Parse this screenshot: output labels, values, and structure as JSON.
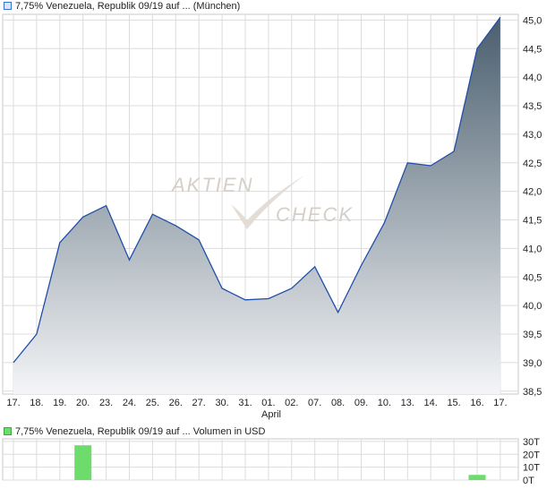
{
  "price_chart": {
    "legend": "7,75% Venezuela, Republik 09/19 auf ... (München)",
    "legend_color": "#3a6fd0",
    "line_color": "#1f4fa8",
    "fill_top_color": "#4a5e6e",
    "fill_bottom_color": "#f4f5f7",
    "grid_color": "#dcdcdc",
    "y_tick_labels": [
      "38,5",
      "39,0",
      "39,5",
      "40,0",
      "40,5",
      "41,0",
      "41,5",
      "42,0",
      "42,5",
      "43,0",
      "43,5",
      "44,0",
      "44,5",
      "45,0"
    ],
    "x_tick_labels": [
      "17.",
      "18.",
      "19.",
      "20.",
      "23.",
      "24.",
      "25.",
      "26.",
      "27.",
      "30.",
      "31.",
      "01.",
      "02.",
      "07.",
      "08.",
      "09.",
      "10.",
      "13.",
      "14.",
      "15.",
      "16.",
      "17."
    ],
    "month_label": "April",
    "watermark": {
      "top": "AKTIEN",
      "bottom": "CHECK"
    }
  },
  "volume_chart": {
    "legend": "7,75% Venezuela, Republik 09/19 auf ... Volumen in USD",
    "bar_color": "#6ddc6d",
    "y_tick_labels": [
      "30T",
      "20T",
      "10T",
      "0T"
    ]
  },
  "chart_data": [
    {
      "type": "area",
      "x": [
        "17.",
        "18.",
        "19.",
        "20.",
        "23.",
        "24.",
        "25.",
        "26.",
        "27.",
        "30.",
        "31.",
        "01.",
        "02.",
        "07.",
        "08.",
        "09.",
        "10.",
        "13.",
        "14.",
        "15.",
        "16.",
        "17."
      ],
      "series": [
        {
          "values": [
            39.0,
            39.5,
            41.1,
            41.55,
            41.75,
            40.8,
            41.6,
            41.4,
            41.15,
            40.3,
            40.1,
            40.12,
            40.3,
            40.68,
            39.88,
            40.7,
            41.45,
            42.5,
            42.45,
            42.7,
            44.5,
            45.05
          ]
        }
      ],
      "ylim": [
        38.45,
        45.1
      ],
      "grid": true
    },
    {
      "type": "bar",
      "categories": [
        "17.",
        "18.",
        "19.",
        "20.",
        "23.",
        "24.",
        "25.",
        "26.",
        "27.",
        "30.",
        "31.",
        "01.",
        "02.",
        "07.",
        "08.",
        "09.",
        "10.",
        "13.",
        "14.",
        "15.",
        "16.",
        "17."
      ],
      "values": [
        0,
        0,
        0,
        27,
        0,
        0,
        0,
        0,
        0,
        0,
        0,
        0,
        0,
        0,
        0,
        0,
        0,
        0,
        0,
        0,
        4,
        0
      ],
      "unit": "T",
      "ylim": [
        0,
        32
      ],
      "grid": true
    }
  ]
}
